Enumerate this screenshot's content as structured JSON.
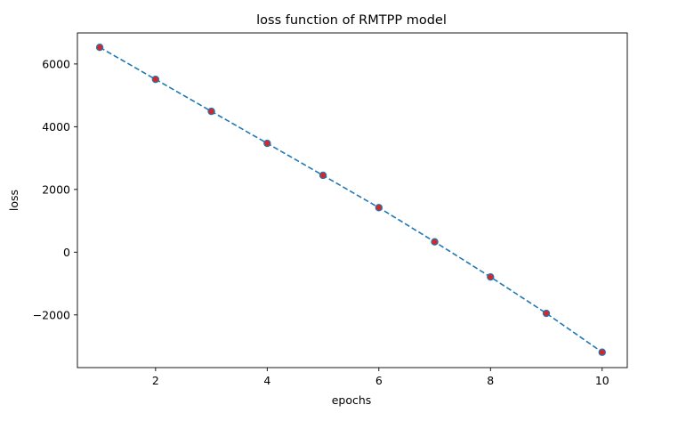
{
  "chart_data": {
    "type": "line",
    "title": "loss function of RMTPP model",
    "xlabel": "epochs",
    "ylabel": "loss",
    "x": [
      1,
      2,
      3,
      4,
      5,
      6,
      7,
      8,
      9,
      10
    ],
    "series": [
      {
        "values": [
          6530,
          5510,
          4490,
          3470,
          2450,
          1420,
          330,
          -790,
          -1950,
          -3190
        ],
        "line_color": "#1f77b4",
        "line_style": "dashed",
        "marker_face_color": "#d62728",
        "marker_edge_color": "#1f77b4"
      }
    ],
    "xlim": [
      0.6,
      10.45
    ],
    "ylim": [
      -3680,
      6990
    ],
    "xticks": [
      2,
      4,
      6,
      8,
      10
    ],
    "xtick_labels": [
      "2",
      "4",
      "6",
      "8",
      "10"
    ],
    "yticks": [
      -2000,
      0,
      2000,
      4000,
      6000
    ],
    "ytick_labels": [
      "−2000",
      "0",
      "2000",
      "4000",
      "6000"
    ],
    "grid": false,
    "legend": "none"
  }
}
